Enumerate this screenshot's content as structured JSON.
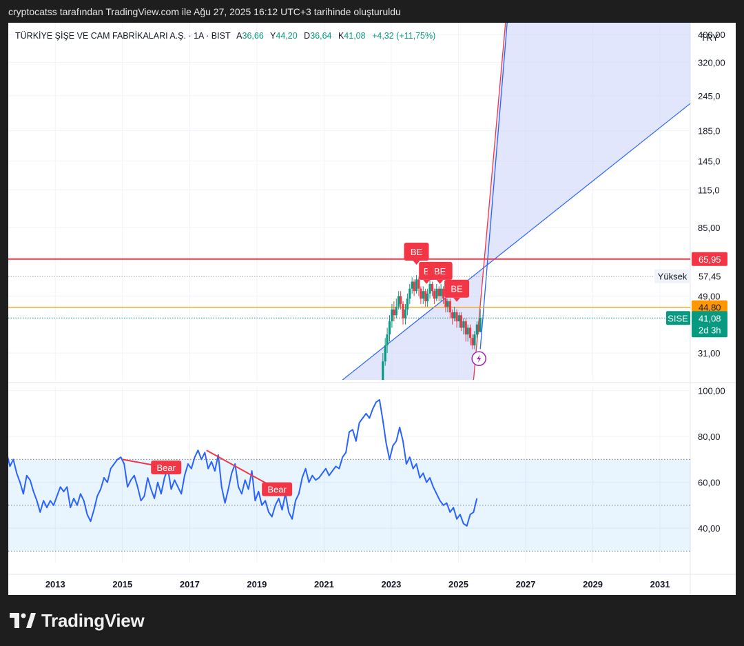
{
  "caption": "cryptocatss tarafından TradingView.com ile Ağu 27, 2025 16:12 UTC+3 tarihinde oluşturuldu",
  "brand": {
    "name": "TradingView",
    "logo_icon": "tradingview-logo-icon"
  },
  "header": {
    "symbol_desc": "TÜRKİYE ŞİŞE VE CAM FABRİKALARI A.Ş. · 1A · BIST",
    "open_label": "A",
    "open_value": "36,66",
    "high_label": "Y",
    "high_value": "44,20",
    "low_label": "D",
    "low_value": "36,64",
    "close_label": "K",
    "close_value": "41,08",
    "change": "+4,32 (+11,75%)"
  },
  "chart_data": [
    {
      "type": "candlestick",
      "title": "TÜRKİYE ŞİŞE VE CAM FABRİKALARI A.Ş. · 1A · BIST",
      "currency": "TRY",
      "y_scale": "log",
      "ylim": [
        25,
        440
      ],
      "y_ticks": [
        "400,00",
        "320,00",
        "245,0",
        "185,0",
        "145,0",
        "115,0",
        "85,00",
        "49,00",
        "31,00"
      ],
      "y_tick_values": [
        400,
        320,
        245,
        185,
        145,
        115,
        85,
        49,
        31
      ],
      "x_range": [
        "2011-07",
        "2031-11"
      ],
      "x_ticks": [
        "2013",
        "2015",
        "2017",
        "2019",
        "2021",
        "2023",
        "2025",
        "2027",
        "2029",
        "2031"
      ],
      "horizontal_lines": [
        {
          "value": 65.95,
          "label": "65,95",
          "color": "#f23645"
        },
        {
          "value": 57.45,
          "label": "57,45",
          "name": "Yüksek",
          "color": "#9e9e9e",
          "dotted": true
        },
        {
          "value": 44.8,
          "label": "44,80",
          "color": "#ff9800"
        },
        {
          "value": 41.08,
          "label": "41,08",
          "name": "SISE",
          "sublabel": "2d 3h",
          "color": "#089981",
          "dotted": true
        }
      ],
      "trendlines": [
        {
          "from": [
            2021.55,
            25
          ],
          "to": [
            2031.9,
            230
          ],
          "color": "#2962ff"
        }
      ],
      "projection_fan": {
        "edge_red": [
          [
            2025.45,
            25
          ],
          [
            2026.4,
            440
          ]
        ],
        "edge_blue": [
          [
            2025.65,
            32
          ],
          [
            2026.45,
            440
          ]
        ],
        "color_fill": "#c8d2fa"
      },
      "signals": [
        {
          "label": "BE",
          "x": 2023.75,
          "y": 70
        },
        {
          "label": "B",
          "x": 2024.05,
          "y": 60
        },
        {
          "label": "BE",
          "x": 2024.45,
          "y": 60
        },
        {
          "label": "BE",
          "x": 2024.95,
          "y": 52
        }
      ],
      "daily_data": [
        [
          2022.75,
          25,
          29,
          31,
          24
        ],
        [
          2022.82,
          29,
          33,
          35,
          28
        ],
        [
          2022.88,
          33,
          36,
          38,
          31
        ],
        [
          2022.95,
          36,
          40,
          42,
          34
        ],
        [
          2023.02,
          40,
          44,
          46,
          38
        ],
        [
          2023.08,
          44,
          42,
          47,
          40
        ],
        [
          2023.15,
          42,
          45,
          48,
          41
        ],
        [
          2023.22,
          45,
          49,
          51,
          44
        ],
        [
          2023.28,
          49,
          46,
          51,
          44
        ],
        [
          2023.35,
          46,
          41,
          47,
          39
        ],
        [
          2023.42,
          41,
          44,
          46,
          39
        ],
        [
          2023.48,
          44,
          48,
          50,
          42
        ],
        [
          2023.55,
          48,
          52,
          54,
          46
        ],
        [
          2023.62,
          52,
          55,
          57,
          50
        ],
        [
          2023.68,
          55,
          51,
          56,
          49
        ],
        [
          2023.75,
          51,
          56,
          58,
          50
        ],
        [
          2023.82,
          56,
          52,
          57,
          49
        ],
        [
          2023.88,
          52,
          48,
          53,
          46
        ],
        [
          2023.95,
          48,
          51,
          53,
          46
        ],
        [
          2024.02,
          51,
          47,
          52,
          45
        ],
        [
          2024.08,
          47,
          50,
          52,
          45
        ],
        [
          2024.15,
          50,
          54,
          56,
          48
        ],
        [
          2024.22,
          54,
          51,
          55,
          49
        ],
        [
          2024.28,
          51,
          48,
          52,
          46
        ],
        [
          2024.35,
          48,
          52,
          54,
          47
        ],
        [
          2024.42,
          52,
          49,
          53,
          47
        ],
        [
          2024.48,
          49,
          52,
          54,
          47
        ],
        [
          2024.55,
          52,
          48,
          53,
          46
        ],
        [
          2024.62,
          48,
          45,
          49,
          43
        ],
        [
          2024.68,
          45,
          47,
          48,
          43
        ],
        [
          2024.75,
          47,
          43,
          48,
          41
        ],
        [
          2024.82,
          43,
          41,
          44,
          39
        ],
        [
          2024.88,
          41,
          43,
          45,
          40
        ],
        [
          2024.95,
          43,
          40,
          44,
          38
        ],
        [
          2025.02,
          40,
          42,
          43,
          38
        ],
        [
          2025.08,
          42,
          38,
          43,
          37
        ],
        [
          2025.15,
          38,
          40,
          41,
          36
        ],
        [
          2025.22,
          40,
          36,
          41,
          34
        ],
        [
          2025.28,
          36,
          38,
          39,
          34
        ],
        [
          2025.35,
          38,
          35,
          39,
          33
        ],
        [
          2025.42,
          35,
          33,
          36,
          32
        ],
        [
          2025.48,
          33,
          36,
          37,
          32
        ],
        [
          2025.55,
          36,
          39,
          40,
          35
        ],
        [
          2025.6,
          39,
          37,
          40,
          36
        ],
        [
          2025.65,
          36.66,
          41.08,
          44.2,
          36.64
        ]
      ]
    },
    {
      "type": "line",
      "indicator": "RSI",
      "ylim": [
        25,
        102
      ],
      "y_ticks": [
        "100,00",
        "80,00",
        "60,00",
        "40,00"
      ],
      "y_tick_values": [
        100,
        80,
        60,
        40
      ],
      "bands": {
        "upper": 70,
        "middle": 50,
        "lower": 30
      },
      "divergences": [
        {
          "label": "Bear",
          "from": [
            2015.0,
            70
          ],
          "to": [
            2016.3,
            66.5
          ]
        },
        {
          "label": "Bear",
          "from": [
            2017.5,
            74
          ],
          "to": [
            2019.6,
            57
          ]
        }
      ],
      "rsi_data": [
        [
          2011.55,
          73
        ],
        [
          2011.65,
          67
        ],
        [
          2011.75,
          70
        ],
        [
          2011.85,
          64
        ],
        [
          2011.95,
          60
        ],
        [
          2012.05,
          55
        ],
        [
          2012.15,
          63
        ],
        [
          2012.25,
          61
        ],
        [
          2012.35,
          56
        ],
        [
          2012.45,
          52
        ],
        [
          2012.55,
          47
        ],
        [
          2012.65,
          52
        ],
        [
          2012.75,
          49
        ],
        [
          2012.85,
          52
        ],
        [
          2012.95,
          50
        ],
        [
          2013.05,
          54
        ],
        [
          2013.15,
          58
        ],
        [
          2013.25,
          56
        ],
        [
          2013.35,
          58
        ],
        [
          2013.45,
          49
        ],
        [
          2013.55,
          53
        ],
        [
          2013.65,
          50
        ],
        [
          2013.75,
          55
        ],
        [
          2013.85,
          52
        ],
        [
          2013.95,
          46
        ],
        [
          2014.05,
          43
        ],
        [
          2014.15,
          48
        ],
        [
          2014.25,
          54
        ],
        [
          2014.35,
          57
        ],
        [
          2014.45,
          62
        ],
        [
          2014.55,
          60
        ],
        [
          2014.65,
          66
        ],
        [
          2014.75,
          68
        ],
        [
          2014.85,
          70
        ],
        [
          2014.95,
          71
        ],
        [
          2015.05,
          68
        ],
        [
          2015.15,
          58
        ],
        [
          2015.25,
          61
        ],
        [
          2015.35,
          63
        ],
        [
          2015.45,
          58
        ],
        [
          2015.55,
          52
        ],
        [
          2015.65,
          54
        ],
        [
          2015.75,
          62
        ],
        [
          2015.85,
          57
        ],
        [
          2015.95,
          53
        ],
        [
          2016.05,
          60
        ],
        [
          2016.15,
          55
        ],
        [
          2016.25,
          62
        ],
        [
          2016.35,
          66
        ],
        [
          2016.45,
          57
        ],
        [
          2016.55,
          61
        ],
        [
          2016.65,
          58
        ],
        [
          2016.75,
          55
        ],
        [
          2016.85,
          63
        ],
        [
          2016.95,
          68
        ],
        [
          2017.05,
          66
        ],
        [
          2017.15,
          71
        ],
        [
          2017.25,
          74
        ],
        [
          2017.35,
          70
        ],
        [
          2017.45,
          73
        ],
        [
          2017.55,
          66
        ],
        [
          2017.65,
          69
        ],
        [
          2017.75,
          65
        ],
        [
          2017.85,
          72
        ],
        [
          2017.95,
          58
        ],
        [
          2018.05,
          51
        ],
        [
          2018.15,
          57
        ],
        [
          2018.25,
          64
        ],
        [
          2018.35,
          68
        ],
        [
          2018.45,
          58
        ],
        [
          2018.55,
          55
        ],
        [
          2018.65,
          61
        ],
        [
          2018.75,
          57
        ],
        [
          2018.85,
          65
        ],
        [
          2018.95,
          52
        ],
        [
          2019.05,
          56
        ],
        [
          2019.15,
          50
        ],
        [
          2019.25,
          52
        ],
        [
          2019.35,
          47
        ],
        [
          2019.45,
          45
        ],
        [
          2019.55,
          50
        ],
        [
          2019.65,
          53
        ],
        [
          2019.75,
          48
        ],
        [
          2019.85,
          55
        ],
        [
          2019.95,
          47
        ],
        [
          2020.05,
          44
        ],
        [
          2020.15,
          52
        ],
        [
          2020.25,
          55
        ],
        [
          2020.35,
          62
        ],
        [
          2020.45,
          66
        ],
        [
          2020.55,
          60
        ],
        [
          2020.65,
          63
        ],
        [
          2020.75,
          61
        ],
        [
          2020.85,
          62
        ],
        [
          2020.95,
          64
        ],
        [
          2021.05,
          66
        ],
        [
          2021.15,
          63
        ],
        [
          2021.25,
          65
        ],
        [
          2021.35,
          67
        ],
        [
          2021.45,
          66
        ],
        [
          2021.55,
          71
        ],
        [
          2021.65,
          73
        ],
        [
          2021.75,
          82
        ],
        [
          2021.85,
          83
        ],
        [
          2021.95,
          78
        ],
        [
          2022.05,
          86
        ],
        [
          2022.15,
          88
        ],
        [
          2022.25,
          90
        ],
        [
          2022.35,
          88
        ],
        [
          2022.45,
          92
        ],
        [
          2022.55,
          95
        ],
        [
          2022.65,
          96
        ],
        [
          2022.75,
          87
        ],
        [
          2022.85,
          77
        ],
        [
          2022.95,
          70
        ],
        [
          2023.05,
          76
        ],
        [
          2023.15,
          78
        ],
        [
          2023.25,
          84
        ],
        [
          2023.35,
          78
        ],
        [
          2023.45,
          68
        ],
        [
          2023.55,
          71
        ],
        [
          2023.65,
          66
        ],
        [
          2023.75,
          68
        ],
        [
          2023.85,
          62
        ],
        [
          2023.95,
          64
        ],
        [
          2024.05,
          60
        ],
        [
          2024.15,
          62
        ],
        [
          2024.25,
          58
        ],
        [
          2024.35,
          55
        ],
        [
          2024.45,
          52
        ],
        [
          2024.55,
          50
        ],
        [
          2024.65,
          51
        ],
        [
          2024.75,
          47
        ],
        [
          2024.85,
          49
        ],
        [
          2024.95,
          44
        ],
        [
          2025.05,
          46
        ],
        [
          2025.15,
          42
        ],
        [
          2025.25,
          41
        ],
        [
          2025.35,
          46
        ],
        [
          2025.45,
          47
        ],
        [
          2025.55,
          53
        ]
      ]
    }
  ]
}
